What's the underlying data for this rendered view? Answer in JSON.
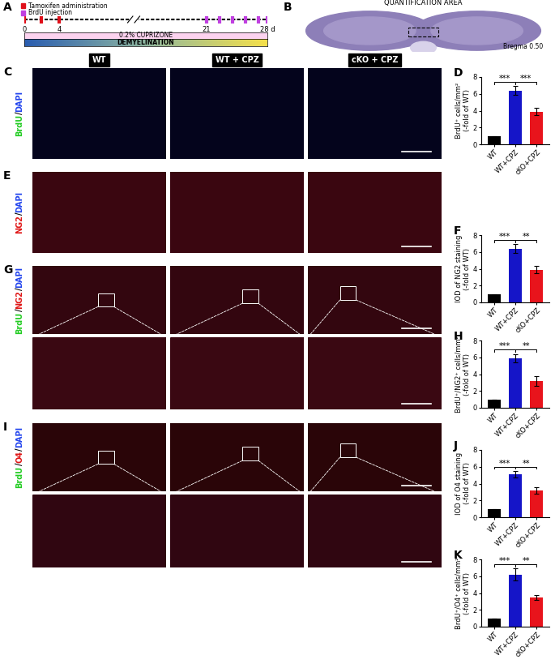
{
  "panel_A": {
    "label": "A",
    "key": [
      {
        "text": "Tamoxifen administration",
        "color": "#e0101a"
      },
      {
        "text": "BrdU injection",
        "color": "#c040e0"
      }
    ],
    "xlim": [
      0,
      28
    ],
    "xticks": [
      0,
      4,
      21,
      {
        "value": 28,
        "label": "28 d"
      }
    ],
    "tamoxifen_days": [
      0,
      2,
      4
    ],
    "brdu_days": [
      21,
      22.5,
      24,
      25.5,
      27,
      28
    ],
    "treatment": "0.2% CUPRIZONE",
    "phase": "DEMYELINATION"
  },
  "panel_B": {
    "label": "B",
    "title": "QUANTIFICATION AREA",
    "note": "Bregma 0.50"
  },
  "image_panels": {
    "columns": [
      "WT",
      "WT + CPZ",
      "cKO + CPZ"
    ],
    "rows": [
      {
        "label": "C",
        "zoom": false,
        "stain": [
          {
            "text": "BrdU",
            "color": "#22cc22"
          },
          {
            "text": "/",
            "color": "#000000"
          },
          {
            "text": "DAPI",
            "color": "#2244ee"
          }
        ]
      },
      {
        "label": "E",
        "zoom": false,
        "stain": [
          {
            "text": "NG2",
            "color": "#e01818"
          },
          {
            "text": "/",
            "color": "#000000"
          },
          {
            "text": "DAPI",
            "color": "#2244ee"
          }
        ]
      },
      {
        "label": "G",
        "zoom": true,
        "stain": [
          {
            "text": "BrdU",
            "color": "#22cc22"
          },
          {
            "text": "/",
            "color": "#000000"
          },
          {
            "text": "NG2",
            "color": "#e01818"
          },
          {
            "text": "/",
            "color": "#000000"
          },
          {
            "text": "DAPI",
            "color": "#2244ee"
          }
        ]
      },
      {
        "label": "I",
        "zoom": true,
        "stain": [
          {
            "text": "BrdU",
            "color": "#22cc22"
          },
          {
            "text": "/",
            "color": "#000000"
          },
          {
            "text": "O4",
            "color": "#e01818"
          },
          {
            "text": "/",
            "color": "#000000"
          },
          {
            "text": "DAPI",
            "color": "#2244ee"
          }
        ]
      }
    ]
  },
  "chart_data": [
    {
      "type": "bar",
      "panel": "D",
      "y_label": "BrdU⁺ cells/mm²\n(-fold of WT)",
      "categories": [
        "WT",
        "WT+CPZ",
        "cKO+CPZ"
      ],
      "values": [
        1,
        6.4,
        3.9
      ],
      "errors": [
        0,
        0.5,
        0.4
      ],
      "colors": [
        "#000000",
        "#1515c8",
        "#e8141c"
      ],
      "ylim": [
        0,
        8
      ],
      "yticks": [
        0,
        2,
        4,
        6,
        8
      ],
      "annotations": [
        {
          "text": "***",
          "from": 0,
          "to": 1
        },
        {
          "text": "***",
          "from": 1,
          "to": 2
        }
      ]
    },
    {
      "type": "bar",
      "panel": "F",
      "y_label": "IOD of NG2 staining\n(-fold of WT)",
      "categories": [
        "WT",
        "WT+CPZ",
        "cKO+CPZ"
      ],
      "values": [
        1,
        6.4,
        3.9
      ],
      "errors": [
        0,
        0.5,
        0.4
      ],
      "colors": [
        "#000000",
        "#1515c8",
        "#e8141c"
      ],
      "ylim": [
        0,
        8
      ],
      "yticks": [
        0,
        2,
        4,
        6,
        8
      ],
      "annotations": [
        {
          "text": "***",
          "from": 0,
          "to": 1
        },
        {
          "text": "**",
          "from": 1,
          "to": 2
        }
      ]
    },
    {
      "type": "bar",
      "panel": "H",
      "y_label": "BrdU⁺/NG2⁺ cells/mm²\n(-fold of WT)",
      "categories": [
        "WT",
        "WT+CPZ",
        "cKO+CPZ"
      ],
      "values": [
        1,
        5.9,
        3.2
      ],
      "errors": [
        0,
        0.5,
        0.6
      ],
      "colors": [
        "#000000",
        "#1515c8",
        "#e8141c"
      ],
      "ylim": [
        0,
        8
      ],
      "yticks": [
        0,
        2,
        4,
        6,
        8
      ],
      "annotations": [
        {
          "text": "***",
          "from": 0,
          "to": 1
        },
        {
          "text": "**",
          "from": 1,
          "to": 2
        }
      ]
    },
    {
      "type": "bar",
      "panel": "J",
      "y_label": "IOD of O4 staining\n(-fold of WT)",
      "categories": [
        "WT",
        "WT+CPZ",
        "cKO+CPZ"
      ],
      "values": [
        1,
        5.1,
        3.2
      ],
      "errors": [
        0,
        0.4,
        0.4
      ],
      "colors": [
        "#000000",
        "#1515c8",
        "#e8141c"
      ],
      "ylim": [
        0,
        8
      ],
      "yticks": [
        0,
        2,
        4,
        6,
        8
      ],
      "annotations": [
        {
          "text": "***",
          "from": 0,
          "to": 1
        },
        {
          "text": "**",
          "from": 1,
          "to": 2
        }
      ]
    },
    {
      "type": "bar",
      "panel": "K",
      "y_label": "BrdU⁺/O4⁺ cells/mm²\n(-fold of WT)",
      "categories": [
        "WT",
        "WT+CPZ",
        "cKO+CPZ"
      ],
      "values": [
        1,
        6.2,
        3.5
      ],
      "errors": [
        0,
        0.7,
        0.3
      ],
      "colors": [
        "#000000",
        "#1515c8",
        "#e8141c"
      ],
      "ylim": [
        0,
        8
      ],
      "yticks": [
        0,
        2,
        4,
        6,
        8
      ],
      "annotations": [
        {
          "text": "***",
          "from": 0,
          "to": 1
        },
        {
          "text": "**",
          "from": 1,
          "to": 2
        }
      ]
    }
  ]
}
